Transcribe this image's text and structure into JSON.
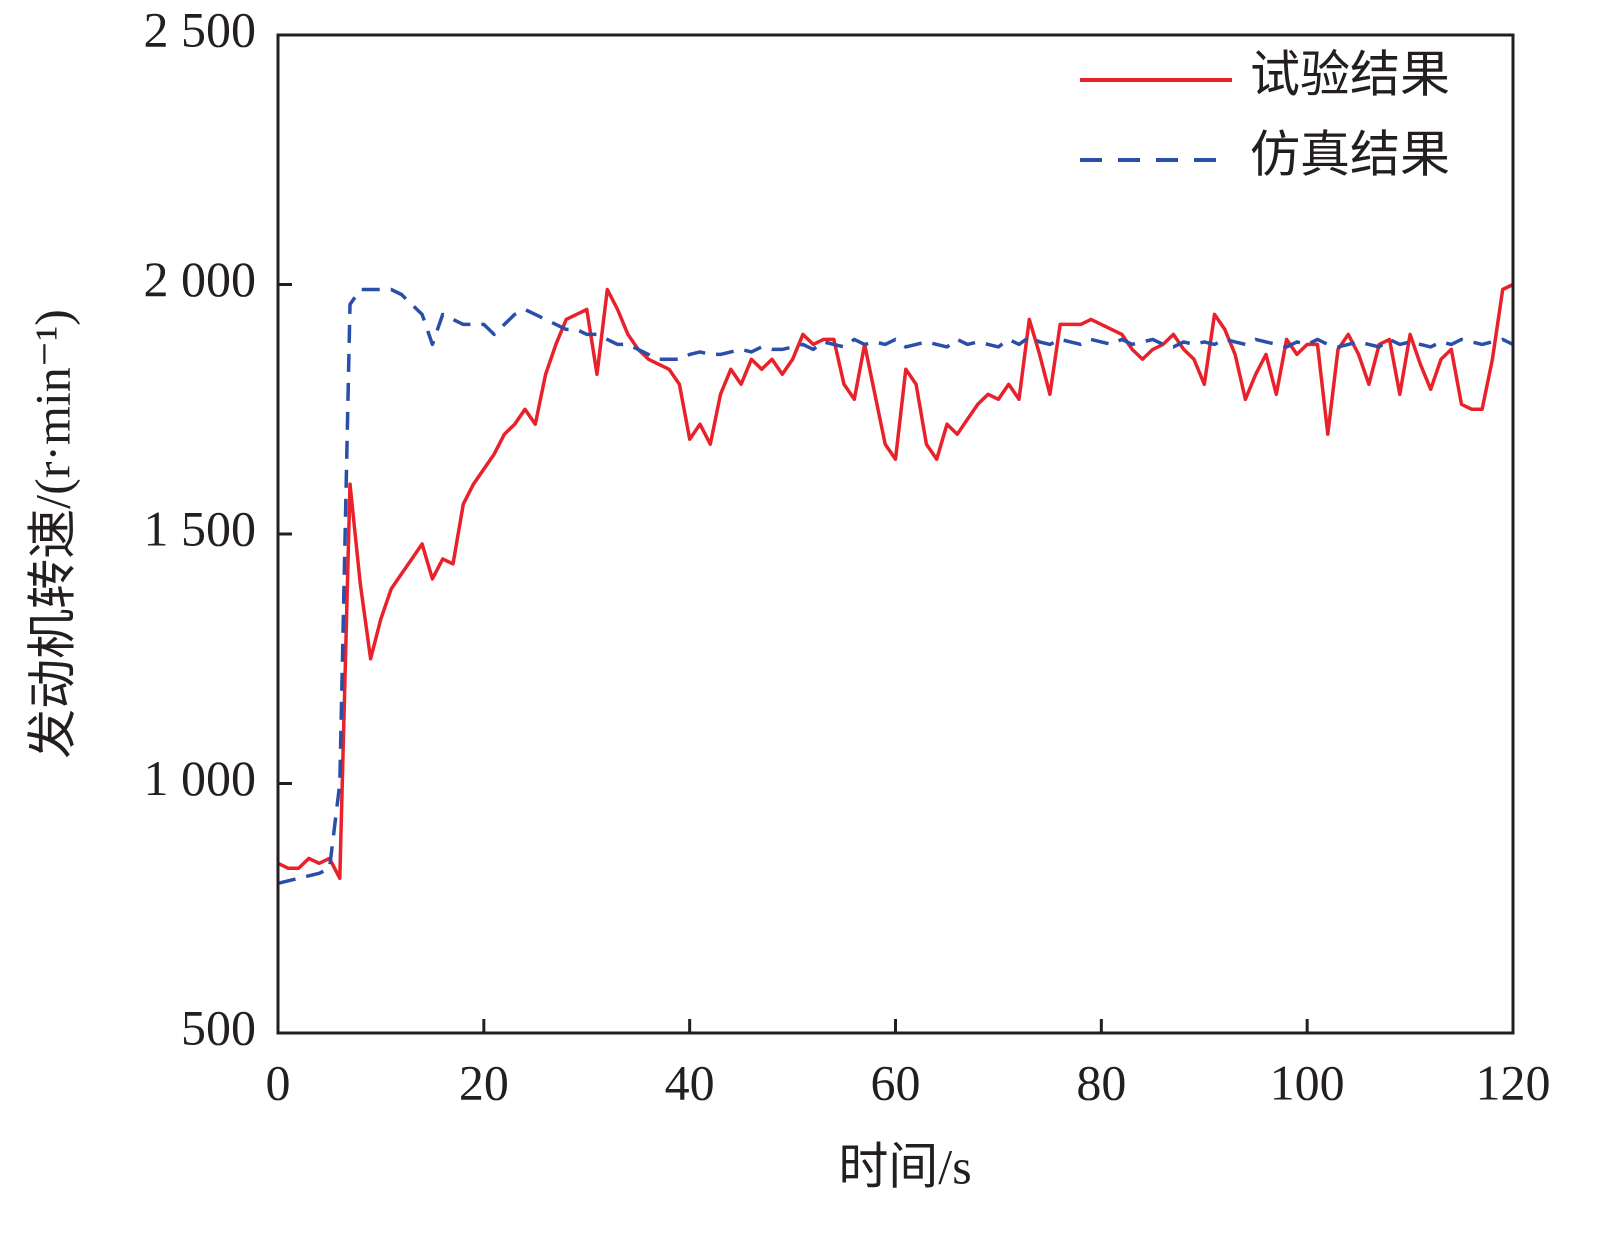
{
  "chart_data": {
    "type": "line",
    "x_label": "时间/s",
    "y_label": "发动机转速/(r·min⁻¹)",
    "x": [
      0,
      1,
      2,
      3,
      4,
      5,
      6,
      7,
      8,
      9,
      10,
      11,
      12,
      13,
      14,
      15,
      16,
      17,
      18,
      19,
      20,
      21,
      22,
      23,
      24,
      25,
      26,
      27,
      28,
      29,
      30,
      31,
      32,
      33,
      34,
      35,
      36,
      37,
      38,
      39,
      40,
      41,
      42,
      43,
      44,
      45,
      46,
      47,
      48,
      49,
      50,
      51,
      52,
      53,
      54,
      55,
      56,
      57,
      58,
      59,
      60,
      61,
      62,
      63,
      64,
      65,
      66,
      67,
      68,
      69,
      70,
      71,
      72,
      73,
      74,
      75,
      76,
      77,
      78,
      79,
      80,
      81,
      82,
      83,
      84,
      85,
      86,
      87,
      88,
      89,
      90,
      91,
      92,
      93,
      94,
      95,
      96,
      97,
      98,
      99,
      100,
      101,
      102,
      103,
      104,
      105,
      106,
      107,
      108,
      109,
      110,
      111,
      112,
      113,
      114,
      115,
      116,
      117,
      118,
      119,
      120
    ],
    "series": [
      {
        "name": "试验结果",
        "color": "#e8212a",
        "dash": false,
        "values": [
          840,
          830,
          830,
          850,
          840,
          850,
          810,
          1600,
          1400,
          1250,
          1330,
          1390,
          1420,
          1450,
          1480,
          1410,
          1450,
          1440,
          1560,
          1600,
          1630,
          1660,
          1700,
          1720,
          1750,
          1720,
          1820,
          1880,
          1930,
          1940,
          1950,
          1820,
          1990,
          1950,
          1900,
          1870,
          1850,
          1840,
          1830,
          1800,
          1690,
          1720,
          1680,
          1780,
          1830,
          1800,
          1850,
          1830,
          1850,
          1820,
          1850,
          1900,
          1880,
          1890,
          1890,
          1800,
          1770,
          1880,
          1780,
          1680,
          1650,
          1830,
          1800,
          1680,
          1650,
          1720,
          1700,
          1730,
          1760,
          1780,
          1770,
          1800,
          1770,
          1930,
          1860,
          1780,
          1920,
          1920,
          1920,
          1930,
          1920,
          1910,
          1900,
          1870,
          1850,
          1870,
          1880,
          1900,
          1870,
          1850,
          1800,
          1940,
          1910,
          1860,
          1770,
          1820,
          1860,
          1780,
          1890,
          1860,
          1880,
          1880,
          1700,
          1870,
          1900,
          1860,
          1800,
          1880,
          1890,
          1780,
          1900,
          1840,
          1790,
          1850,
          1870,
          1760,
          1750,
          1750,
          1850,
          1990,
          2000
        ]
      },
      {
        "name": "仿真结果",
        "color": "#2a4fa8",
        "dash": true,
        "values": [
          800,
          805,
          810,
          815,
          820,
          830,
          1000,
          1960,
          1990,
          1990,
          1990,
          1990,
          1980,
          1960,
          1940,
          1880,
          1940,
          1930,
          1920,
          1920,
          1920,
          1900,
          1920,
          1940,
          1950,
          1940,
          1930,
          1920,
          1910,
          1910,
          1900,
          1900,
          1890,
          1880,
          1880,
          1870,
          1860,
          1850,
          1850,
          1850,
          1860,
          1865,
          1860,
          1860,
          1865,
          1870,
          1865,
          1875,
          1870,
          1870,
          1875,
          1880,
          1870,
          1885,
          1880,
          1875,
          1890,
          1880,
          1885,
          1880,
          1890,
          1875,
          1880,
          1885,
          1880,
          1875,
          1890,
          1880,
          1885,
          1880,
          1875,
          1890,
          1880,
          1895,
          1885,
          1880,
          1890,
          1885,
          1880,
          1890,
          1885,
          1880,
          1890,
          1880,
          1885,
          1890,
          1880,
          1875,
          1885,
          1880,
          1885,
          1880,
          1890,
          1885,
          1880,
          1890,
          1885,
          1880,
          1875,
          1885,
          1880,
          1890,
          1880,
          1875,
          1880,
          1885,
          1880,
          1875,
          1890,
          1880,
          1885,
          1880,
          1875,
          1885,
          1880,
          1890,
          1885,
          1880,
          1885,
          1890,
          1880
        ]
      }
    ],
    "xlim": [
      0,
      120
    ],
    "xticks": [
      0,
      20,
      40,
      60,
      80,
      100,
      120
    ],
    "ylim": [
      500,
      2500
    ],
    "yticks": [
      500,
      {
        "value": 1000,
        "label": "1 000"
      },
      {
        "value": 1500,
        "label": "1 500"
      },
      {
        "value": 2000,
        "label": "2 000"
      },
      {
        "value": 2500,
        "label": "2 500"
      }
    ],
    "grid": false,
    "legend": "upper right"
  }
}
